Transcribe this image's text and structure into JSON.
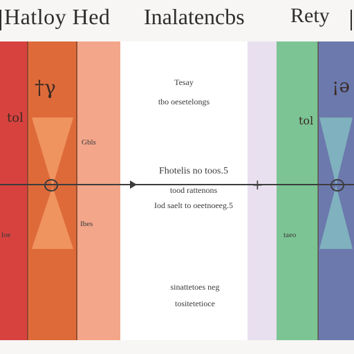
{
  "header": {
    "title_left": "Hatloy Hed",
    "title_center": "Inalatencbs",
    "title_right": "Rety"
  },
  "panels": [
    {
      "name": "red",
      "color": "#d7423f"
    },
    {
      "name": "orange",
      "color": "#de6a3a"
    },
    {
      "name": "salmon",
      "color": "#f3a68a"
    },
    {
      "name": "white",
      "color": "#ffffff"
    },
    {
      "name": "lavender",
      "color": "#e9e0ef"
    },
    {
      "name": "green",
      "color": "#7cc494"
    },
    {
      "name": "blue",
      "color": "#6b79ad"
    }
  ],
  "labels": {
    "white_top_1": "Tesay",
    "white_top_2": "tbo oesetelongs",
    "white_mid_1": "Fhotelis no toos.5",
    "white_mid_2": "tood rattenons",
    "white_mid_3": "Iod saelt to oeetnoeeg.5",
    "white_bot_1": "sinattetoes neg",
    "white_bot_2": "tositetetioce",
    "salmon_upper": "Gbls",
    "salmon_lower": "Ibes",
    "red_lower": "loe",
    "green_lower": "taeo",
    "red_glyph": "tol",
    "orange_glyph": "†γ",
    "green_glyph": "tol",
    "blue_glyph": "¡ə"
  }
}
